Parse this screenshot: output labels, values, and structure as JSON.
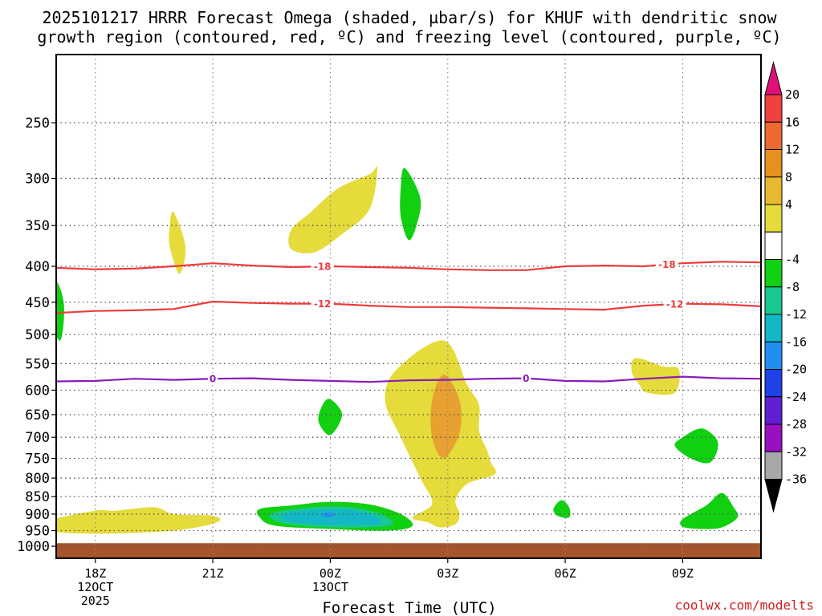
{
  "title": {
    "line1": "2025101217 HRRR Forecast Omega (shaded, µbar/s) for KHUF with dendritic snow",
    "line2": "growth region (contoured, red, ºC) and freezing level (contoured, purple, ºC)"
  },
  "credit": "coolwx.com/modelts",
  "chart_data": {
    "type": "time-height cross section (filled contour)",
    "station": "KHUF",
    "run": "2025101217",
    "model": "HRRR",
    "xlabel": "Forecast Time (UTC)",
    "ylabel": "",
    "units": "µbar/s",
    "x_ticks": [
      {
        "hour": 1,
        "label": "18Z",
        "sub1": "12OCT",
        "sub2": "2025"
      },
      {
        "hour": 4,
        "label": "21Z",
        "sub1": "",
        "sub2": ""
      },
      {
        "hour": 7,
        "label": "00Z",
        "sub1": "13OCT",
        "sub2": ""
      },
      {
        "hour": 10,
        "label": "03Z",
        "sub1": "",
        "sub2": ""
      },
      {
        "hour": 13,
        "label": "06Z",
        "sub1": "",
        "sub2": ""
      },
      {
        "hour": 16,
        "label": "09Z",
        "sub1": "",
        "sub2": ""
      }
    ],
    "xlim": [
      0,
      18
    ],
    "y_ticks": [
      250,
      300,
      350,
      400,
      450,
      500,
      550,
      600,
      650,
      700,
      750,
      800,
      850,
      900,
      950,
      1000
    ],
    "ylim_hpa": [
      1040,
      200
    ],
    "colorbar": {
      "labels": [
        20,
        16,
        12,
        8,
        4,
        -4,
        -8,
        -12,
        -16,
        -20,
        -24,
        -28,
        -32,
        -36
      ],
      "bins": [
        {
          "range": "over 20",
          "color": "#e0107a"
        },
        {
          "range": "16 to 20",
          "color": "#f04040"
        },
        {
          "range": "12 to 16",
          "color": "#ec6a30"
        },
        {
          "range": "8 to 12",
          "color": "#e8901e"
        },
        {
          "range": "4 to 8",
          "color": "#e8b830"
        },
        {
          "range": "-4 to 4",
          "color": "#e5db3a"
        },
        {
          "range": "-4 to 4 neutral",
          "color": "#ffffff"
        },
        {
          "range": "-8 to -4",
          "color": "#10d010"
        },
        {
          "range": "-12 to -8",
          "color": "#18c890"
        },
        {
          "range": "-16 to -12",
          "color": "#12b8c8"
        },
        {
          "range": "-20 to -16",
          "color": "#2090f0"
        },
        {
          "range": "-24 to -20",
          "color": "#2040e8"
        },
        {
          "range": "-28 to -24",
          "color": "#6020d0"
        },
        {
          "range": "-32 to -28",
          "color": "#9a10c0"
        },
        {
          "range": "-36 to -32",
          "color": "#a8a8a8"
        },
        {
          "range": "below -36",
          "color": "#000000"
        }
      ]
    },
    "contours": [
      {
        "name": "dendritic-top",
        "label": "-18",
        "unit": "ºC",
        "color": "#ee3b3b",
        "points": [
          [
            0,
            402
          ],
          [
            1,
            404
          ],
          [
            2,
            403
          ],
          [
            3,
            400
          ],
          [
            4,
            396
          ],
          [
            5,
            399
          ],
          [
            6,
            401
          ],
          [
            7,
            400
          ],
          [
            8,
            401
          ],
          [
            9,
            402
          ],
          [
            10,
            404
          ],
          [
            11,
            405
          ],
          [
            12,
            405
          ],
          [
            13,
            400
          ],
          [
            14,
            399
          ],
          [
            15,
            400
          ],
          [
            16,
            396
          ],
          [
            17,
            394
          ],
          [
            18,
            395
          ]
        ],
        "label_hours": [
          6.8,
          15.6
        ]
      },
      {
        "name": "dendritic-bottom",
        "label": "-12",
        "unit": "ºC",
        "color": "#ee3b3b",
        "points": [
          [
            0,
            466
          ],
          [
            1,
            463
          ],
          [
            2,
            462
          ],
          [
            3,
            460
          ],
          [
            4,
            449
          ],
          [
            5,
            451
          ],
          [
            6,
            452
          ],
          [
            7,
            452
          ],
          [
            8,
            455
          ],
          [
            9,
            457
          ],
          [
            10,
            457
          ],
          [
            11,
            458
          ],
          [
            12,
            459
          ],
          [
            13,
            460
          ],
          [
            14,
            461
          ],
          [
            15,
            455
          ],
          [
            16,
            452
          ],
          [
            17,
            453
          ],
          [
            18,
            456
          ]
        ],
        "label_hours": [
          6.8,
          15.8
        ]
      },
      {
        "name": "freezing-level",
        "label": "0",
        "unit": "ºC",
        "color": "#8a1cb8",
        "points": [
          [
            0,
            583
          ],
          [
            1,
            582
          ],
          [
            2,
            578
          ],
          [
            3,
            580
          ],
          [
            4,
            578
          ],
          [
            5,
            577
          ],
          [
            6,
            580
          ],
          [
            7,
            582
          ],
          [
            8,
            584
          ],
          [
            9,
            581
          ],
          [
            10,
            580
          ],
          [
            11,
            578
          ],
          [
            12,
            577
          ],
          [
            13,
            582
          ],
          [
            14,
            583
          ],
          [
            15,
            578
          ],
          [
            16,
            574
          ],
          [
            17,
            577
          ],
          [
            18,
            578
          ]
        ],
        "label_hours": [
          4.0,
          12.0
        ]
      }
    ],
    "shaded_regions": [
      {
        "name": "yellow-upper-central",
        "class": "-4 to 4 (positive)",
        "color": "#e5db3a",
        "points": [
          [
            6.0,
            355
          ],
          [
            6.5,
            335
          ],
          [
            7.2,
            310
          ],
          [
            8.0,
            296
          ],
          [
            8.2,
            290
          ],
          [
            8.0,
            332
          ],
          [
            7.3,
            360
          ],
          [
            6.6,
            382
          ],
          [
            6.0,
            378
          ]
        ]
      },
      {
        "name": "yellow-350-hour3",
        "class": "positive",
        "color": "#e5db3a",
        "points": [
          [
            3.0,
            335
          ],
          [
            3.3,
            375
          ],
          [
            3.15,
            410
          ],
          [
            2.9,
            375
          ],
          [
            2.9,
            350
          ]
        ]
      },
      {
        "name": "green-300-hour8_9",
        "class": "-8 to -4",
        "color": "#10d010",
        "points": [
          [
            8.9,
            290
          ],
          [
            9.3,
            320
          ],
          [
            9.2,
            350
          ],
          [
            9.0,
            367
          ],
          [
            8.8,
            340
          ],
          [
            8.8,
            310
          ]
        ]
      },
      {
        "name": "green-450-hour0",
        "class": "-8 to -4",
        "color": "#10d010",
        "points": [
          [
            0.0,
            420
          ],
          [
            0.2,
            455
          ],
          [
            0.1,
            510
          ],
          [
            -0.2,
            470
          ],
          [
            -0.2,
            440
          ]
        ]
      },
      {
        "name": "yellow-sfc-left",
        "class": "positive",
        "color": "#e5db3a",
        "points": [
          [
            -0.2,
            920
          ],
          [
            1.0,
            890
          ],
          [
            1.5,
            890
          ],
          [
            2.5,
            880
          ],
          [
            3.0,
            900
          ],
          [
            4.0,
            905
          ],
          [
            4.1,
            925
          ],
          [
            3.0,
            950
          ],
          [
            1.0,
            960
          ],
          [
            -0.2,
            950
          ]
        ]
      },
      {
        "name": "yellow-central-tall",
        "class": "positive",
        "color": "#e5db3a",
        "points": [
          [
            9.9,
            510
          ],
          [
            10.5,
            590
          ],
          [
            10.8,
            630
          ],
          [
            10.8,
            685
          ],
          [
            11.0,
            730
          ],
          [
            11.1,
            760
          ],
          [
            11.2,
            790
          ],
          [
            10.5,
            815
          ],
          [
            10.2,
            860
          ],
          [
            10.3,
            900
          ],
          [
            10.2,
            930
          ],
          [
            9.8,
            940
          ],
          [
            9.5,
            925
          ],
          [
            9.1,
            910
          ],
          [
            9.6,
            870
          ],
          [
            9.3,
            800
          ],
          [
            8.8,
            700
          ],
          [
            8.4,
            620
          ],
          [
            8.7,
            560
          ]
        ]
      },
      {
        "name": "orange-central",
        "class": "8 to 12",
        "color": "#e8a030",
        "points": [
          [
            9.9,
            570
          ],
          [
            10.3,
            620
          ],
          [
            10.3,
            690
          ],
          [
            9.9,
            750
          ],
          [
            9.6,
            700
          ],
          [
            9.6,
            620
          ]
        ]
      },
      {
        "name": "green-650-hour7",
        "class": "-8 to -4",
        "color": "#10d010",
        "points": [
          [
            7.0,
            618
          ],
          [
            7.3,
            650
          ],
          [
            7.0,
            695
          ],
          [
            6.7,
            665
          ],
          [
            6.8,
            630
          ]
        ]
      },
      {
        "name": "green-sfc-central",
        "class": "-8 to -4",
        "color": "#10d010",
        "points": [
          [
            5.2,
            885
          ],
          [
            6.0,
            875
          ],
          [
            7.0,
            865
          ],
          [
            8.0,
            872
          ],
          [
            8.8,
            900
          ],
          [
            9.1,
            935
          ],
          [
            8.5,
            950
          ],
          [
            7.0,
            945
          ],
          [
            5.6,
            935
          ],
          [
            5.2,
            910
          ]
        ]
      },
      {
        "name": "cyan-sfc-central",
        "class": "-12 to -8",
        "color": "#18c890",
        "points": [
          [
            5.5,
            898
          ],
          [
            6.5,
            880
          ],
          [
            7.5,
            880
          ],
          [
            8.3,
            900
          ],
          [
            8.6,
            930
          ],
          [
            8.0,
            940
          ],
          [
            6.6,
            938
          ],
          [
            5.7,
            925
          ]
        ]
      },
      {
        "name": "teal-sfc-central",
        "class": "-16 to -12",
        "color": "#12b8c8",
        "points": [
          [
            5.8,
            900
          ],
          [
            6.6,
            888
          ],
          [
            7.5,
            888
          ],
          [
            8.1,
            905
          ],
          [
            8.3,
            928
          ],
          [
            7.7,
            933
          ],
          [
            6.6,
            930
          ],
          [
            5.9,
            920
          ]
        ]
      },
      {
        "name": "blue-dot-central",
        "class": "-20 to -16",
        "color": "#2090f0",
        "points": [
          [
            6.8,
            900
          ],
          [
            7.0,
            895
          ],
          [
            7.1,
            905
          ],
          [
            6.9,
            910
          ]
        ]
      },
      {
        "name": "yellow-550-hour15",
        "class": "positive",
        "color": "#e5db3a",
        "points": [
          [
            14.8,
            540
          ],
          [
            15.5,
            555
          ],
          [
            15.9,
            560
          ],
          [
            15.8,
            605
          ],
          [
            15.1,
            605
          ],
          [
            14.9,
            590
          ],
          [
            14.7,
            565
          ]
        ]
      },
      {
        "name": "green-700-hour16_5",
        "class": "-8 to -4",
        "color": "#10d010",
        "points": [
          [
            16.5,
            680
          ],
          [
            16.9,
            712
          ],
          [
            16.7,
            760
          ],
          [
            16.2,
            750
          ],
          [
            15.8,
            720
          ],
          [
            16.0,
            700
          ]
        ]
      },
      {
        "name": "green-880-hour13",
        "class": "-8 to -4",
        "color": "#10d010",
        "points": [
          [
            12.9,
            860
          ],
          [
            13.1,
            880
          ],
          [
            13.1,
            910
          ],
          [
            12.8,
            905
          ],
          [
            12.7,
            885
          ]
        ]
      },
      {
        "name": "green-sfc-right",
        "class": "-8 to -4",
        "color": "#10d010",
        "points": [
          [
            17.0,
            840
          ],
          [
            17.3,
            880
          ],
          [
            17.4,
            910
          ],
          [
            17.0,
            940
          ],
          [
            16.5,
            945
          ],
          [
            16.0,
            938
          ],
          [
            16.0,
            915
          ],
          [
            16.6,
            875
          ]
        ]
      }
    ],
    "ground_level_hpa": 990
  }
}
